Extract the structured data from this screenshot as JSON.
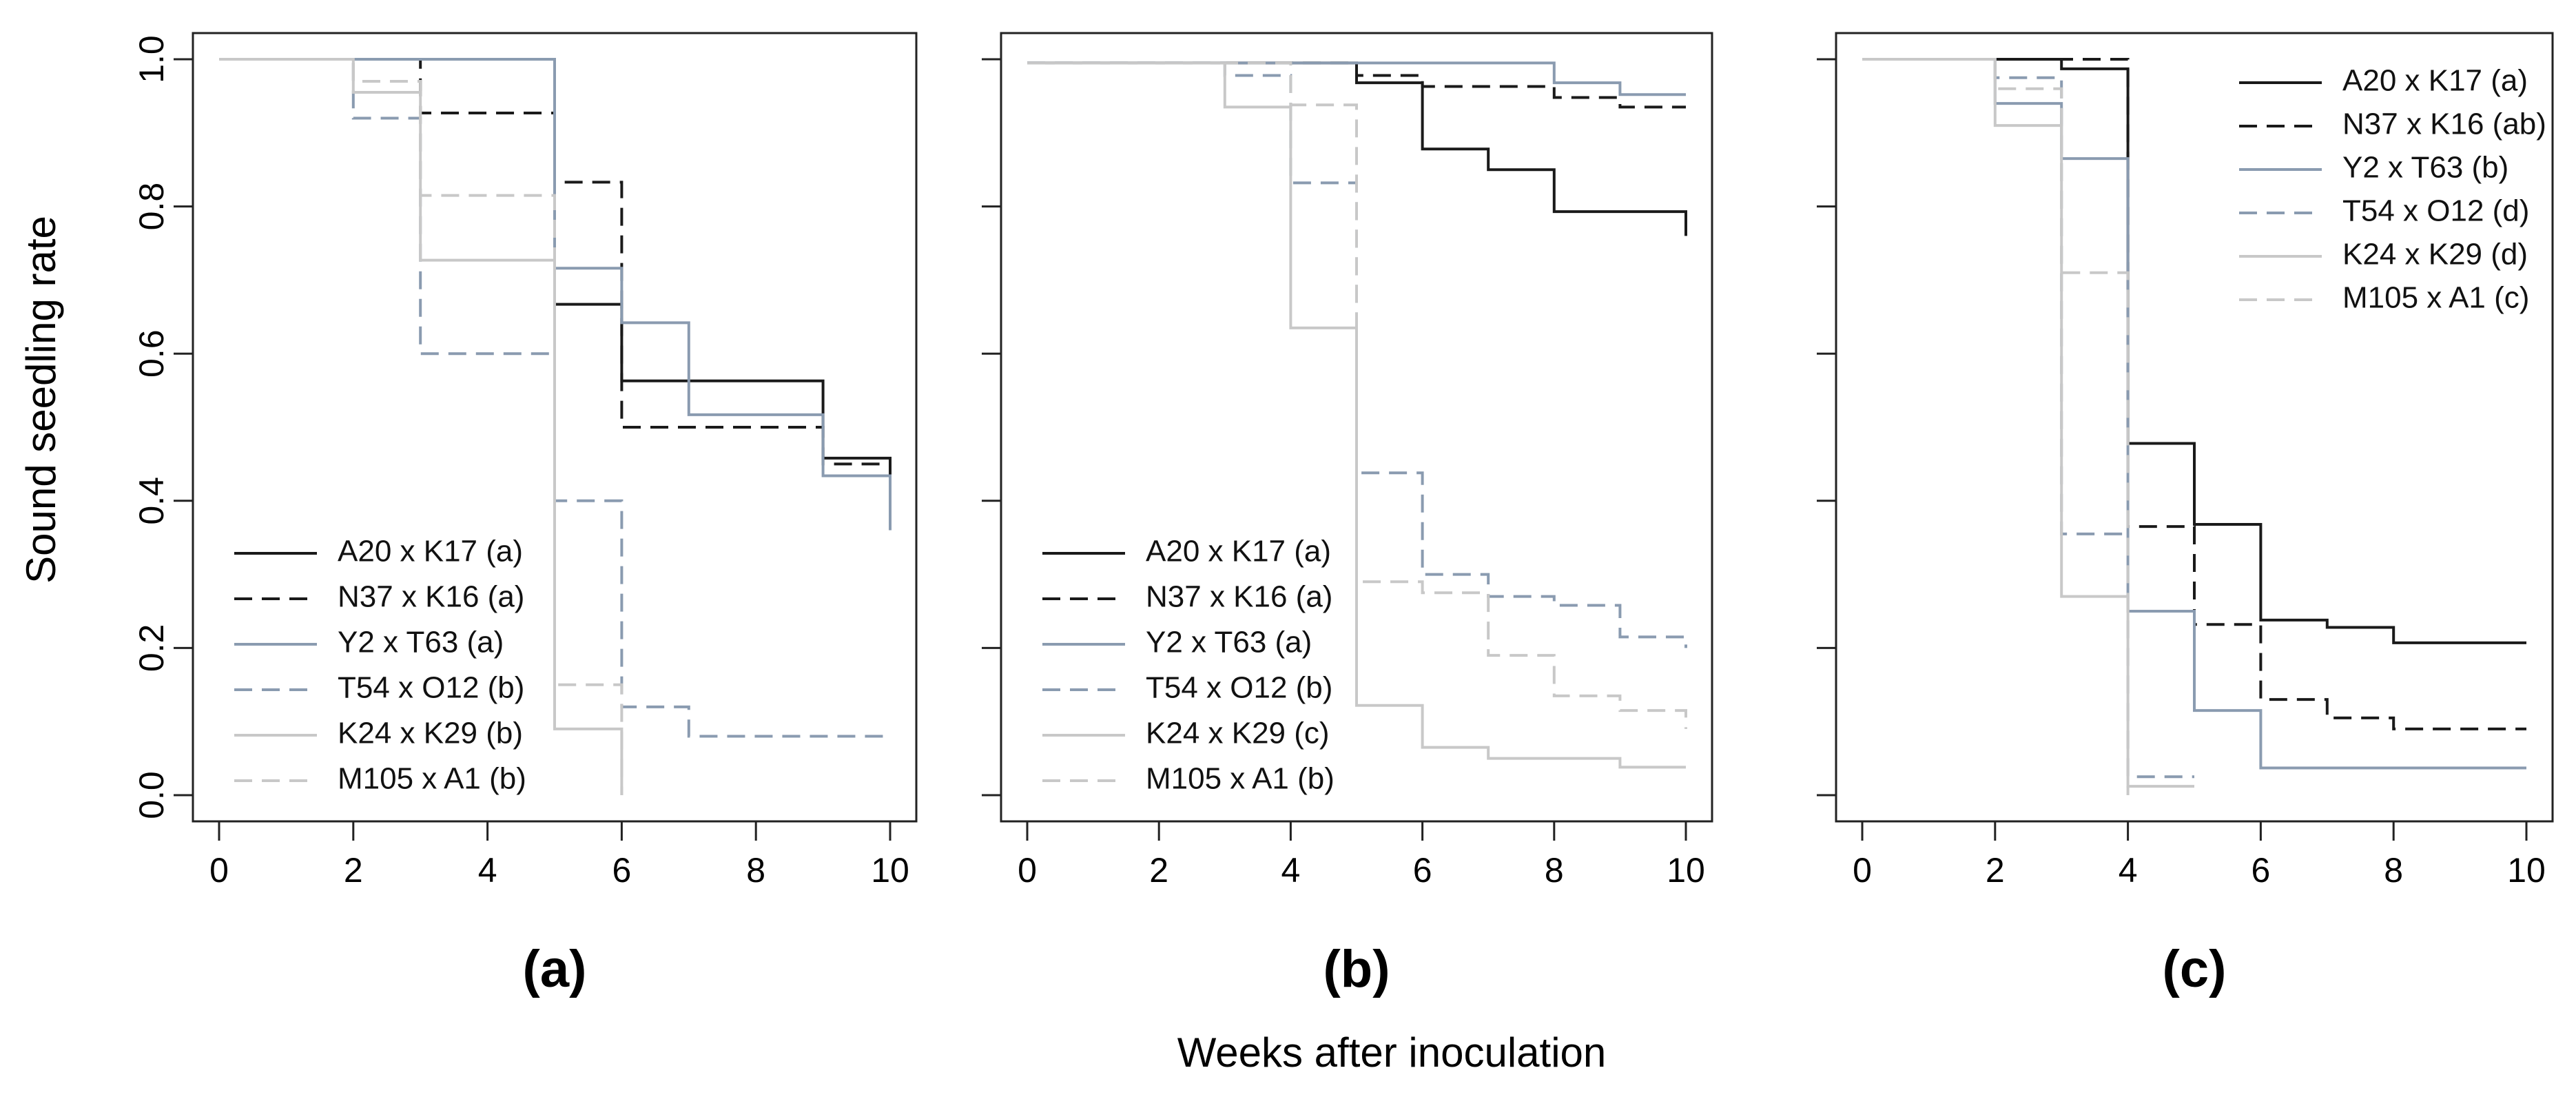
{
  "figure": {
    "ylabel": "Sound seedling rate",
    "xlabel": "Weeks after inoculation"
  },
  "chart_data": [
    {
      "panel": "(a)",
      "type": "line",
      "step": true,
      "xlim": [
        0,
        10
      ],
      "ylim": [
        0,
        1
      ],
      "xticks": [
        "0",
        "2",
        "4",
        "6",
        "8",
        "10"
      ],
      "yticks": [
        "0.0",
        "0.2",
        "0.4",
        "0.6",
        "0.8",
        "1.0"
      ],
      "legend_position": "bottom-left",
      "series": [
        {
          "name": "A20 x K17 (a)",
          "color": "#1a1a1a",
          "dash": "solid",
          "x": [
            0,
            5,
            6,
            9,
            10
          ],
          "y": [
            1.0,
            0.667,
            0.563,
            0.458,
            0.36
          ]
        },
        {
          "name": "N37 x K16 (a)",
          "color": "#1a1a1a",
          "dash": "dashed",
          "x": [
            0,
            3,
            5,
            6,
            9,
            10
          ],
          "y": [
            1.0,
            0.927,
            0.833,
            0.5,
            0.45,
            0.45
          ]
        },
        {
          "name": "Y2 x T63 (a)",
          "color": "#8a9bb0",
          "dash": "solid",
          "x": [
            0,
            5,
            6,
            7,
            9,
            10
          ],
          "y": [
            1.0,
            0.716,
            0.642,
            0.517,
            0.434,
            0.36
          ]
        },
        {
          "name": "T54 x O12 (b)",
          "color": "#8a9bb0",
          "dash": "dashed",
          "x": [
            0,
            2,
            3,
            5,
            6,
            7,
            10
          ],
          "y": [
            1.0,
            0.92,
            0.6,
            0.4,
            0.12,
            0.08,
            0.08
          ]
        },
        {
          "name": "K24 x K29 (b)",
          "color": "#c8c8c8",
          "dash": "solid",
          "x": [
            0,
            2,
            3,
            5,
            6
          ],
          "y": [
            1.0,
            0.955,
            0.727,
            0.09,
            0.0
          ]
        },
        {
          "name": "M105 x A1 (b)",
          "color": "#c8c8c8",
          "dash": "dashed",
          "x": [
            0,
            2,
            3,
            5,
            6
          ],
          "y": [
            1.0,
            0.97,
            0.815,
            0.15,
            0.0
          ]
        }
      ]
    },
    {
      "panel": "(b)",
      "type": "line",
      "step": true,
      "xlim": [
        0,
        10
      ],
      "ylim": [
        0,
        1
      ],
      "xticks": [
        "0",
        "2",
        "4",
        "6",
        "8",
        "10"
      ],
      "yticks": [
        "0.0",
        "0.2",
        "0.4",
        "0.6",
        "0.8",
        "1.0"
      ],
      "legend_position": "bottom-left",
      "series": [
        {
          "name": "A20 x K17 (a)",
          "color": "#1a1a1a",
          "dash": "solid",
          "x": [
            0,
            5,
            6,
            7,
            8,
            10
          ],
          "y": [
            0.995,
            0.968,
            0.878,
            0.85,
            0.793,
            0.76
          ]
        },
        {
          "name": "N37 x K16 (a)",
          "color": "#1a1a1a",
          "dash": "dashed",
          "x": [
            0,
            5,
            6,
            8,
            9,
            10
          ],
          "y": [
            0.995,
            0.978,
            0.963,
            0.948,
            0.935,
            0.935
          ]
        },
        {
          "name": "Y2 x T63 (a)",
          "color": "#8a9bb0",
          "dash": "solid",
          "x": [
            0,
            8,
            9,
            10
          ],
          "y": [
            0.995,
            0.968,
            0.952,
            0.952
          ]
        },
        {
          "name": "T54 x O12 (b)",
          "color": "#8a9bb0",
          "dash": "dashed",
          "x": [
            0,
            3,
            4,
            5,
            6,
            7,
            8,
            9,
            10
          ],
          "y": [
            0.995,
            0.978,
            0.832,
            0.438,
            0.3,
            0.27,
            0.258,
            0.215,
            0.2
          ]
        },
        {
          "name": "K24 x K29 (c)",
          "color": "#c8c8c8",
          "dash": "solid",
          "x": [
            0,
            3,
            4,
            5,
            6,
            7,
            9,
            10
          ],
          "y": [
            0.995,
            0.935,
            0.635,
            0.122,
            0.065,
            0.05,
            0.038,
            0.038
          ]
        },
        {
          "name": "M105 x A1 (b)",
          "color": "#c8c8c8",
          "dash": "dashed",
          "x": [
            0,
            3,
            4,
            5,
            6,
            7,
            8,
            9,
            10
          ],
          "y": [
            0.995,
            0.995,
            0.938,
            0.29,
            0.275,
            0.19,
            0.135,
            0.115,
            0.09
          ]
        }
      ]
    },
    {
      "panel": "(c)",
      "type": "line",
      "step": true,
      "xlim": [
        0,
        10
      ],
      "ylim": [
        0,
        1
      ],
      "xticks": [
        "0",
        "2",
        "4",
        "6",
        "8",
        "10"
      ],
      "yticks": [
        "0.0",
        "0.2",
        "0.4",
        "0.6",
        "0.8",
        "1.0"
      ],
      "legend_position": "top-right",
      "series": [
        {
          "name": "A20 x K17 (a)",
          "color": "#1a1a1a",
          "dash": "solid",
          "x": [
            0,
            3,
            4,
            5,
            6,
            7,
            8,
            10
          ],
          "y": [
            1.0,
            0.987,
            0.478,
            0.368,
            0.238,
            0.228,
            0.207,
            0.207
          ]
        },
        {
          "name": "N37 x K16 (ab)",
          "color": "#1a1a1a",
          "dash": "dashed",
          "x": [
            0,
            4,
            5,
            6,
            7,
            8,
            10
          ],
          "y": [
            1.0,
            0.365,
            0.232,
            0.13,
            0.105,
            0.09,
            0.09
          ]
        },
        {
          "name": "Y2 x T63 (b)",
          "color": "#8a9bb0",
          "dash": "solid",
          "x": [
            0,
            2,
            3,
            4,
            5,
            6,
            10
          ],
          "y": [
            1.0,
            0.94,
            0.865,
            0.25,
            0.115,
            0.037,
            0.037
          ]
        },
        {
          "name": "T54 x O12 (d)",
          "color": "#8a9bb0",
          "dash": "dashed",
          "x": [
            0,
            2,
            3,
            4,
            5
          ],
          "y": [
            1.0,
            0.975,
            0.355,
            0.025,
            0.025
          ]
        },
        {
          "name": "K24 x K29 (d)",
          "color": "#c8c8c8",
          "dash": "solid",
          "x": [
            0,
            2,
            3,
            4,
            5
          ],
          "y": [
            1.0,
            0.91,
            0.27,
            0.012,
            0.012
          ]
        },
        {
          "name": "M105 x A1 (c)",
          "color": "#c8c8c8",
          "dash": "dashed",
          "x": [
            0,
            2,
            3,
            4
          ],
          "y": [
            1.0,
            0.96,
            0.71,
            0.0
          ]
        }
      ]
    }
  ]
}
